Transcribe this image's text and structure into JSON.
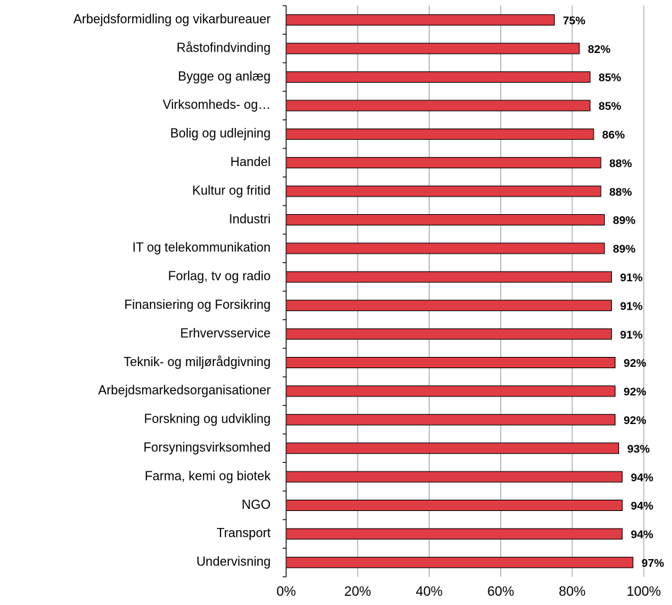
{
  "chart_data": {
    "type": "bar",
    "orientation": "horizontal",
    "categories": [
      "Arbejdsformidling og vikarbureauer",
      "Råstofindvinding",
      "Bygge og anlæg",
      "Virksomheds- og…",
      "Bolig og udlejning",
      "Handel",
      "Kultur og fritid",
      "Industri",
      "IT og telekommunikation",
      "Forlag, tv og radio",
      "Finansiering og Forsikring",
      "Erhvervsservice",
      "Teknik- og miljørådgivning",
      "Arbejdsmarkedsorganisationer",
      "Forskning og udvikling",
      "Forsyningsvirksomhed",
      "Farma, kemi og biotek",
      "NGO",
      "Transport",
      "Undervisning"
    ],
    "values": [
      75,
      82,
      85,
      85,
      86,
      88,
      88,
      89,
      89,
      91,
      91,
      91,
      92,
      92,
      92,
      93,
      94,
      94,
      94,
      97
    ],
    "value_labels": [
      "75%",
      "82%",
      "85%",
      "85%",
      "86%",
      "88%",
      "88%",
      "89%",
      "89%",
      "91%",
      "91%",
      "91%",
      "92%",
      "92%",
      "92%",
      "93%",
      "94%",
      "94%",
      "94%",
      "97%"
    ],
    "color": "#e03c44",
    "xlim": [
      0,
      100
    ],
    "xticks": [
      {
        "value": 0,
        "label": "0%"
      },
      {
        "value": 20,
        "label": "20%"
      },
      {
        "value": 40,
        "label": "40%"
      },
      {
        "value": 60,
        "label": "60%"
      },
      {
        "value": 80,
        "label": "80%"
      },
      {
        "value": 100,
        "label": "100%"
      }
    ],
    "grid": true
  }
}
